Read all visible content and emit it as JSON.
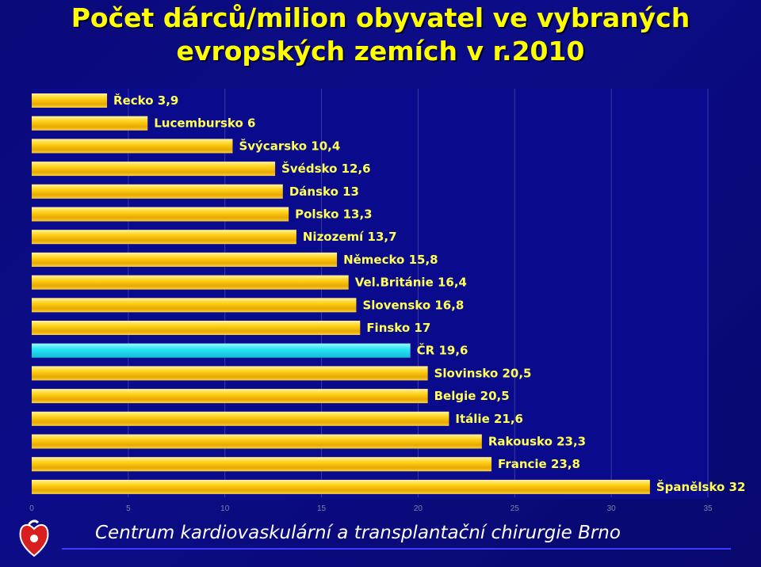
{
  "slide": {
    "title_line1": "Počet dárců/milion obyvatel ve vybraných",
    "title_line2": "evropských zemích v r.2010",
    "footer": "Centrum kardiovaskulární a transplantační chirurgie Brno"
  },
  "chart_data": {
    "type": "bar",
    "orientation": "horizontal",
    "title": "Počet dárců/milion obyvatel ve vybraných evropských zemích v r.2010",
    "xlim": [
      0,
      35
    ],
    "xticks": [
      "0",
      "5",
      "10",
      "15",
      "20",
      "25",
      "30",
      "35"
    ],
    "grid": true,
    "categories": [
      "Řecko",
      "Lucembursko",
      "Švýcarsko",
      "Švédsko",
      "Dánsko",
      "Polsko",
      "Nizozemí",
      "Německo",
      "Vel.Británie",
      "Slovensko",
      "Finsko",
      "ČR",
      "Slovinsko",
      "Belgie",
      "Itálie",
      "Rakousko",
      "Francie",
      "Španělsko"
    ],
    "values": [
      3.9,
      6,
      10.4,
      12.6,
      13,
      13.3,
      13.7,
      15.8,
      16.4,
      16.8,
      17,
      19.6,
      20.5,
      20.5,
      21.6,
      23.3,
      23.8,
      32
    ],
    "labels": [
      "Řecko 3,9",
      "Lucembursko 6",
      "Švýcarsko 10,4",
      "Švédsko 12,6",
      "Dánsko 13",
      "Polsko 13,3",
      "Nizozemí 13,7",
      "Německo 15,8",
      "Vel.Británie 16,4",
      "Slovensko 16,8",
      "Finsko 17",
      "ČR   19,6",
      "Slovinsko 20,5",
      "Belgie 20,5",
      "Itálie 21,6",
      "Rakousko 23,3",
      "Francie 23,8",
      "Španělsko 32"
    ],
    "highlight_category": "ČR",
    "colors": {
      "bar": "#f5c400",
      "bar_highlight": "#27e5f5",
      "label": "#ffff55",
      "grid": "#3a3aa8",
      "title": "#ffff00"
    }
  }
}
